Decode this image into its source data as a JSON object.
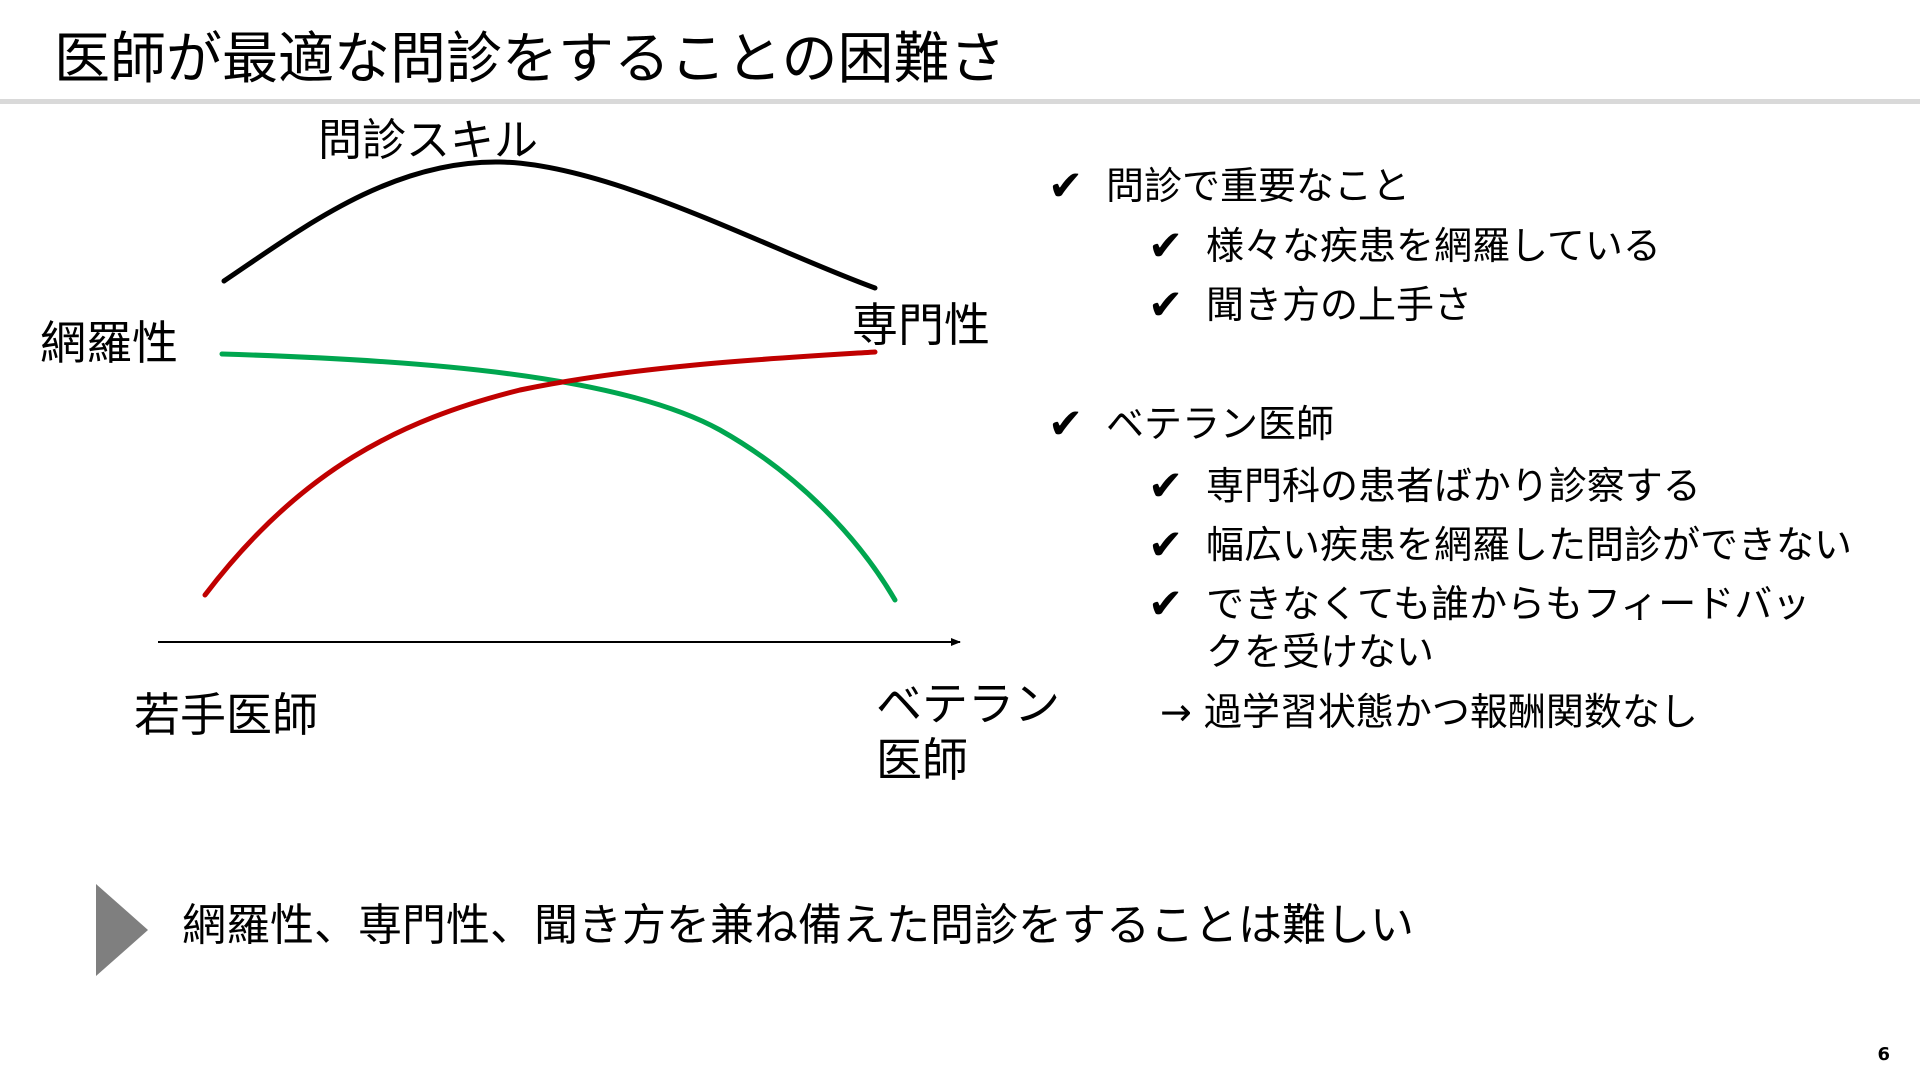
{
  "slide": {
    "title": "医師が最適な問診をすることの困難さ",
    "page_number": "6"
  },
  "diagram": {
    "curve_labels": {
      "skill": "問診スキル",
      "coverage": "網羅性",
      "specialty": "専門性"
    },
    "axis": {
      "start_label": "若手医師",
      "end_label": "ベテラン医師"
    },
    "colors": {
      "skill": "#000000",
      "coverage": "#00a64f",
      "specialty": "#c00000",
      "axis": "#000000"
    }
  },
  "bullets": {
    "check_glyph": "✔",
    "group1_heading": "問診で重要なこと",
    "group1_item1": "様々な疾患を網羅している",
    "group1_item2": "聞き方の上手さ",
    "group2_heading": "ベテラン医師",
    "group2_item1": "専門科の患者ばかり診察する",
    "group2_item2": "幅広い疾患を網羅した問診ができない",
    "group2_item3": "できなくても誰からもフィードバックを受けない",
    "arrow_note": "→ 過学習状態かつ報酬関数なし"
  },
  "conclusion": {
    "text": "網羅性、専門性、聞き方を兼ね備えた問診をすることは難しい",
    "arrow_color": "#7f7f7f"
  }
}
